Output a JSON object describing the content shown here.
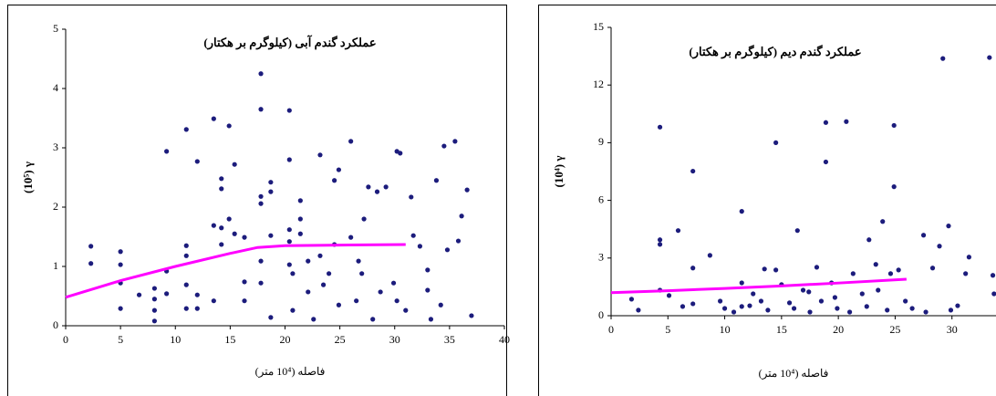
{
  "chart_data": [
    {
      "type": "scatter",
      "title": "عملکرد گندم آبی (کیلوگرم بر هکتار)",
      "xlabel": "فاصله (10⁴ متر)",
      "ylabel": "(10⁵) γ",
      "xlim": [
        0,
        40
      ],
      "ylim": [
        0,
        5
      ],
      "xticks": [
        0,
        5,
        10,
        15,
        20,
        25,
        30,
        35,
        40
      ],
      "yticks": [
        0,
        1,
        2,
        3,
        4,
        5
      ],
      "series": [
        {
          "type": "scatter",
          "color": "#1c1c7c",
          "x": [
            2.3,
            2.3,
            5,
            5,
            5,
            5,
            6.7,
            8.1,
            8.1,
            8.1,
            8.1,
            9.2,
            9.2,
            9.2,
            11,
            11,
            11,
            11,
            11,
            12,
            12,
            12,
            13.5,
            13.5,
            13.5,
            14.2,
            14.2,
            14.2,
            14.2,
            14.9,
            14.9,
            15.4,
            15.4,
            16.3,
            16.3,
            16.3,
            17.8,
            17.8,
            17.8,
            17.8,
            17.8,
            17.8,
            18.7,
            18.7,
            18.7,
            18.7,
            20.4,
            20.4,
            20.4,
            20.4,
            20.4,
            20.7,
            20.7,
            21.4,
            21.4,
            21.4,
            22.1,
            22.1,
            22.6,
            23.2,
            23.2,
            23.5,
            24,
            24.5,
            24.5,
            24.9,
            24.9,
            26,
            26,
            26.5,
            26.7,
            27,
            27.2,
            27.6,
            28,
            28.4,
            28.7,
            29.2,
            29.9,
            30.2,
            30.2,
            30.5,
            31,
            31.5,
            31.7,
            32.3,
            33,
            33,
            33.3,
            33.8,
            34.2,
            34.5,
            34.8,
            35.5,
            35.8,
            36.1,
            36.6,
            37
          ],
          "values": [
            1.34,
            1.05,
            1.25,
            1.03,
            0.72,
            0.29,
            0.52,
            0.63,
            0.45,
            0.26,
            0.08,
            2.94,
            0.92,
            0.54,
            3.31,
            1.35,
            1.18,
            0.69,
            0.29,
            2.77,
            0.52,
            0.29,
            3.49,
            1.69,
            0.42,
            2.48,
            2.31,
            1.65,
            1.37,
            3.37,
            1.8,
            2.72,
            1.55,
            0.74,
            0.42,
            1.49,
            4.25,
            3.65,
            2.18,
            2.06,
            1.09,
            0.72,
            2.42,
            2.26,
            1.52,
            0.14,
            3.63,
            2.8,
            1.62,
            1.42,
            1.03,
            0.88,
            0.26,
            2.11,
            1.8,
            1.55,
            1.09,
            0.57,
            0.11,
            2.88,
            1.18,
            0.69,
            0.88,
            2.45,
            1.37,
            2.63,
            0.35,
            3.11,
            1.49,
            0.42,
            1.09,
            0.88,
            1.8,
            2.34,
            0.11,
            2.26,
            0.57,
            2.34,
            0.72,
            2.94,
            0.42,
            2.91,
            0.26,
            2.17,
            1.52,
            1.34,
            0.94,
            0.6,
            0.11,
            2.45,
            0.35,
            3.03,
            1.28,
            3.11,
            1.43,
            1.85,
            2.29,
            0.17
          ]
        },
        {
          "type": "line",
          "color": "#ff00ff",
          "x": [
            0,
            5,
            10,
            15,
            17.5,
            20,
            25,
            31
          ],
          "values": [
            0.48,
            0.76,
            1.0,
            1.22,
            1.32,
            1.35,
            1.36,
            1.37
          ]
        }
      ]
    },
    {
      "type": "scatter",
      "title": "عملکرد گندم دیم (کیلوگرم بر هکتار)",
      "xlabel": "فاصله (10⁴ متر)",
      "ylabel": "(10⁴) γ",
      "xlim": [
        0,
        35
      ],
      "ylim": [
        0,
        15
      ],
      "xticks": [
        0,
        5,
        10,
        15,
        20,
        25,
        30
      ],
      "yticks": [
        0,
        3,
        6,
        9,
        12,
        15
      ],
      "series": [
        {
          "type": "scatter",
          "color": "#1c1c7c",
          "x": [
            1.8,
            4.3,
            4.3,
            4.3,
            4.3,
            5.9,
            5.1,
            7.2,
            7.2,
            7.2,
            8.7,
            9.6,
            10,
            11.5,
            11.5,
            11.5,
            12.5,
            13.2,
            13.5,
            14.5,
            14.5,
            15,
            15.7,
            16.4,
            16.9,
            17.4,
            18.1,
            18.5,
            18.9,
            18.9,
            19.4,
            19.9,
            20.7,
            21.3,
            22.1,
            22.7,
            23.3,
            23.9,
            24.6,
            24.9,
            24.9,
            25.3,
            25.9,
            27.5,
            28.3,
            28.9,
            29.2,
            29.7,
            29.9,
            30.5,
            31.2,
            31.5,
            33.3,
            33.6,
            33.7,
            2.4,
            6.3,
            10.8,
            12.2,
            13.8,
            16.1,
            17.5,
            19.7,
            21,
            22.5,
            23.5,
            24.3,
            26.5,
            27.7
          ],
          "values": [
            0.86,
            9.81,
            3.95,
            3.71,
            1.33,
            4.43,
            1.05,
            7.52,
            2.48,
            0.62,
            3.14,
            0.76,
            0.38,
            5.43,
            1.71,
            0.48,
            1.14,
            0.76,
            2.43,
            9.0,
            2.38,
            1.62,
            0.67,
            4.43,
            1.33,
            1.24,
            2.52,
            0.76,
            8.0,
            10.05,
            1.71,
            0.38,
            10.1,
            2.19,
            1.14,
            3.95,
            2.67,
            4.9,
            2.19,
            9.9,
            6.71,
            2.38,
            0.76,
            4.19,
            2.48,
            3.62,
            13.38,
            4.67,
            0.29,
            0.52,
            2.19,
            3.05,
            13.43,
            2.1,
            1.14,
            0.29,
            0.48,
            0.19,
            0.52,
            0.29,
            0.38,
            0.19,
            0.95,
            0.19,
            0.48,
            1.33,
            0.29,
            0.38,
            0.19
          ]
        },
        {
          "type": "line",
          "color": "#ff00ff",
          "x": [
            0,
            5,
            10,
            15,
            20,
            26
          ],
          "values": [
            1.2,
            1.3,
            1.42,
            1.55,
            1.7,
            1.9
          ]
        }
      ]
    }
  ]
}
